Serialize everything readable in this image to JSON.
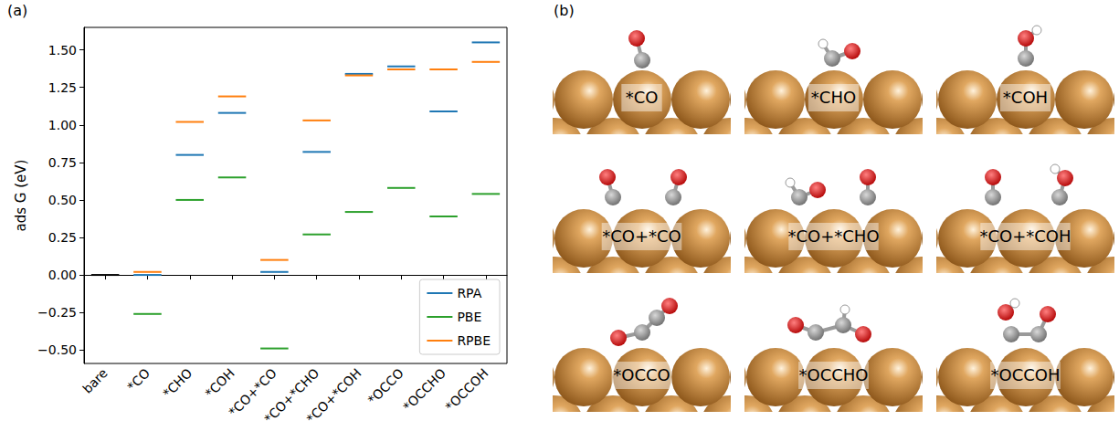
{
  "chart_data": {
    "type": "scatter",
    "marker": "hline",
    "y_label": "ads G (eV)",
    "categories": [
      "bare",
      "*CO",
      "*CHO",
      "*COH",
      "*CO+*CO",
      "*CO+*CHO",
      "*CO+*COH",
      "*OCCO",
      "*OCCHO",
      "*OCCOH"
    ],
    "series": [
      {
        "color": "#000000",
        "values": [
          0,
          null,
          null,
          null,
          null,
          null,
          null,
          null,
          null,
          null
        ]
      },
      {
        "name": "RPA",
        "color": "#1f77b4",
        "values": [
          null,
          0.0,
          0.8,
          1.08,
          0.02,
          0.82,
          1.34,
          1.39,
          1.09,
          1.55
        ]
      },
      {
        "name": "PBE",
        "color": "#2ca02c",
        "values": [
          null,
          -0.26,
          0.5,
          0.65,
          -0.49,
          0.27,
          0.42,
          0.58,
          0.39,
          0.54
        ]
      },
      {
        "name": "RPBE",
        "color": "#ff7f0e",
        "values": [
          null,
          0.02,
          1.02,
          1.19,
          0.1,
          1.03,
          1.33,
          1.37,
          1.37,
          1.42
        ]
      }
    ],
    "ylim": [
      -0.59,
      1.65
    ],
    "yticks": [
      {
        "value": -0.5,
        "label": "−0.50"
      },
      {
        "value": -0.25,
        "label": "−0.25"
      },
      {
        "value": 0,
        "label": "0.00"
      },
      {
        "value": 0.25,
        "label": "0.25"
      },
      {
        "value": 0.5,
        "label": "0.50"
      },
      {
        "value": 0.75,
        "label": "0.75"
      },
      {
        "value": 1.0,
        "label": "1.00"
      },
      {
        "value": 1.25,
        "label": "1.25"
      },
      {
        "value": 1.5,
        "label": "1.50"
      }
    ],
    "grid": false,
    "legend": "lower right"
  },
  "panel_labels": [
    "(a)",
    "(b)"
  ],
  "structures": [
    "*CO",
    "*CHO",
    "*COH",
    "*CO+*CO",
    "*CO+*CHO",
    "*CO+*COH",
    "*OCCO",
    "*OCCHO",
    "*OCCOH"
  ]
}
